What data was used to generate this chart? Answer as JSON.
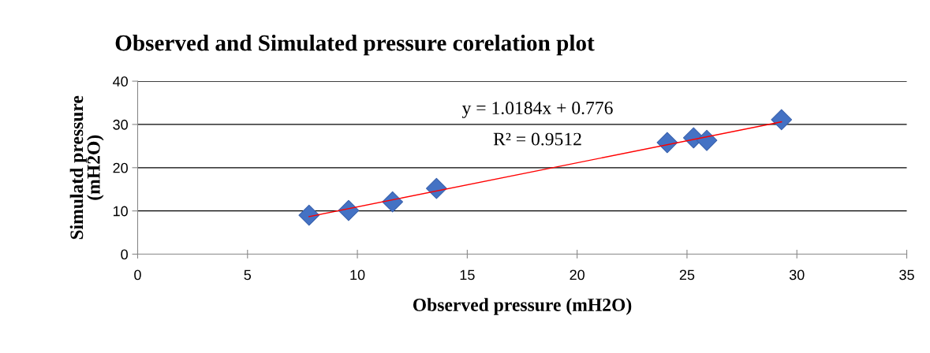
{
  "chart_data": {
    "type": "scatter",
    "title": "Observed and Simulated pressure corelation plot",
    "xlabel": "Observed pressure (mH2O)",
    "ylabel": "Simulatd pressure\n(mH2O)",
    "x": [
      7.8,
      9.6,
      11.6,
      13.6,
      24.1,
      25.3,
      25.9,
      29.3
    ],
    "series": [
      {
        "color": "#4472c4",
        "values": [
          9.0,
          10.1,
          12.1,
          15.2,
          25.8,
          26.9,
          26.3,
          31.1
        ],
        "marker": "diamond"
      },
      {
        "type": "line",
        "color": "#ff0000",
        "x": [
          7.8,
          29.3
        ],
        "values": [
          8.7,
          30.6
        ],
        "marker": "none"
      }
    ],
    "annotations": [
      "y = 1.0184x + 0.776",
      "R² = 0.9512"
    ],
    "xlim": [
      0,
      35
    ],
    "xticks": [
      0,
      5,
      10,
      15,
      20,
      25,
      30,
      35
    ],
    "ylim": [
      0,
      40
    ],
    "yticks": [
      0,
      10,
      20,
      30,
      40
    ],
    "grid": "y",
    "legend": false
  }
}
